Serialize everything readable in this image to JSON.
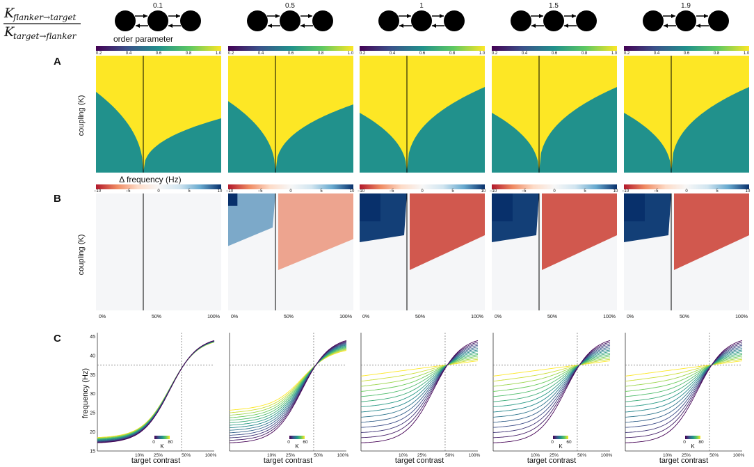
{
  "chart_data": {
    "type": "heatmap",
    "title_formula": {
      "numerator": "K",
      "numerator_sub": "flanker→target",
      "denominator": "K",
      "denominator_sub": "target→flanker"
    },
    "ratios": [
      "0.1",
      "0.5",
      "1",
      "1.5",
      "1.9"
    ],
    "row_labels": [
      "A",
      "B",
      "C"
    ],
    "row_a": {
      "colorbar_label": "order parameter",
      "colorbar_range": [
        0.2,
        1.0
      ],
      "colorbar_ticks": [
        "0.2",
        "0.4",
        "0.6",
        "0.8",
        "1.0"
      ],
      "ylabel": "coupling (K)",
      "colormap": [
        "#440154",
        "#3b528b",
        "#21918c",
        "#5ec962",
        "#fde725"
      ]
    },
    "row_b": {
      "colorbar_label": "Δ frequency (Hz)",
      "colorbar_range": [
        -10,
        10
      ],
      "colorbar_ticks": [
        "−10",
        "−5",
        "0",
        "5",
        "10"
      ],
      "ylabel": "coupling (K)",
      "x_ticks": [
        "0%",
        "50%",
        "100%"
      ],
      "colormap": [
        "#b2182b",
        "#ef8a62",
        "#fddbc7",
        "#f7f7f7",
        "#d1e5f0",
        "#67a9cf",
        "#08306b"
      ]
    },
    "row_c": {
      "xlabel": "target contrast",
      "ylabel": "frequency (Hz)",
      "y_ticks": [
        "15",
        "20",
        "25",
        "30",
        "35",
        "40",
        "45"
      ],
      "y_range": [
        15,
        46
      ],
      "x_ticks": [
        "10%",
        "25%",
        "50%",
        "100%"
      ],
      "reference_frequency": 37.5,
      "reference_contrast_label": "50%",
      "legend_title": "K",
      "legend_ranges": [
        {
          "min": "0",
          "max": "80"
        },
        {
          "min": "0",
          "max": "60"
        },
        {
          "min": "",
          "max": ""
        },
        {
          "min": "0",
          "max": "60"
        },
        {
          "min": "0",
          "max": "80"
        }
      ]
    }
  }
}
